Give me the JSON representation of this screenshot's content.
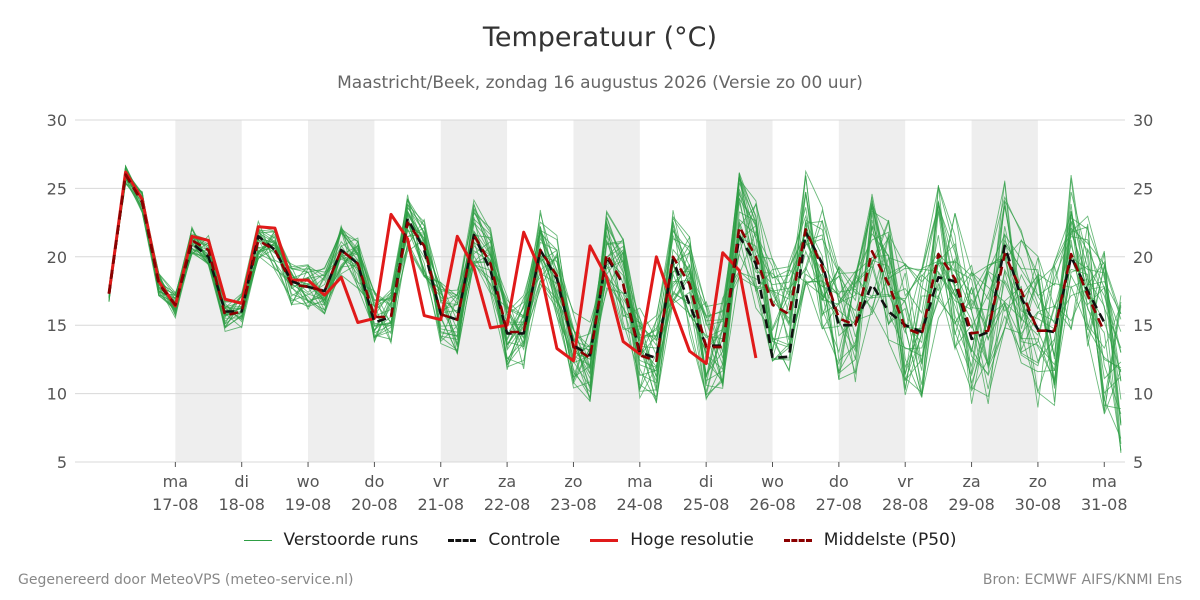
{
  "header": {
    "title": "Temperatuur (°C)",
    "subtitle": "Maastricht/Beek, zondag 16 augustus 2026 (Versie zo 00 uur)"
  },
  "legend": {
    "ensemble": "Verstoorde runs",
    "control": "Controle",
    "hires": "Hoge resolutie",
    "median": "Middelste (P50)"
  },
  "footer": {
    "left": "Gegenereerd door MeteoVPS (meteo-service.nl)",
    "right": "Bron: ECMWF AIFS/KNMI Ens"
  },
  "colors": {
    "ensemble": "#2e9e44",
    "control": "#111111",
    "hires": "#e01a1a",
    "median": "#8b0000",
    "band": "#eeeeee",
    "grid": "#d8d8d8"
  },
  "chart_data": {
    "type": "line",
    "title": "Temperatuur (°C)",
    "subtitle": "Maastricht/Beek, zondag 16 augustus 2026 (Versie zo 00 uur)",
    "ylim": [
      5,
      30
    ],
    "yticks": [
      5,
      10,
      15,
      20,
      25,
      30
    ],
    "grid": true,
    "legend_position": "bottom",
    "x": [
      "16-08 00u",
      "16-08 06u",
      "16-08 12u",
      "16-08 18u",
      "17-08 00u",
      "17-08 06u",
      "17-08 12u",
      "17-08 18u",
      "18-08 00u",
      "18-08 06u",
      "18-08 12u",
      "18-08 18u",
      "19-08 00u",
      "19-08 06u",
      "19-08 12u",
      "19-08 18u",
      "20-08 00u",
      "20-08 06u",
      "20-08 12u",
      "20-08 18u",
      "21-08 00u",
      "21-08 06u",
      "21-08 12u",
      "21-08 18u",
      "22-08 00u",
      "22-08 06u",
      "22-08 12u",
      "22-08 18u",
      "23-08 00u",
      "23-08 06u",
      "23-08 12u",
      "23-08 18u",
      "24-08 00u",
      "24-08 06u",
      "24-08 12u",
      "24-08 18u",
      "25-08 00u",
      "25-08 06u",
      "25-08 12u",
      "25-08 18u",
      "26-08 00u",
      "26-08 06u",
      "26-08 12u",
      "26-08 18u",
      "27-08 00u",
      "27-08 06u",
      "27-08 12u",
      "27-08 18u",
      "28-08 00u",
      "28-08 06u",
      "28-08 12u",
      "28-08 18u",
      "29-08 00u",
      "29-08 06u",
      "29-08 12u",
      "29-08 18u",
      "30-08 00u",
      "30-08 06u",
      "30-08 12u",
      "30-08 18u",
      "31-08 00u",
      "31-08 06u"
    ],
    "x_tick_labels": [
      {
        "day": "ma",
        "date": "17-08"
      },
      {
        "day": "di",
        "date": "18-08"
      },
      {
        "day": "wo",
        "date": "19-08"
      },
      {
        "day": "do",
        "date": "20-08"
      },
      {
        "day": "vr",
        "date": "21-08"
      },
      {
        "day": "za",
        "date": "22-08"
      },
      {
        "day": "zo",
        "date": "23-08"
      },
      {
        "day": "ma",
        "date": "24-08"
      },
      {
        "day": "di",
        "date": "25-08"
      },
      {
        "day": "wo",
        "date": "26-08"
      },
      {
        "day": "do",
        "date": "27-08"
      },
      {
        "day": "vr",
        "date": "28-08"
      },
      {
        "day": "za",
        "date": "29-08"
      },
      {
        "day": "zo",
        "date": "30-08"
      },
      {
        "day": "ma",
        "date": "31-08"
      }
    ],
    "shaded_days": [
      "17-08",
      "19-08",
      "21-08",
      "23-08",
      "25-08",
      "27-08",
      "29-08"
    ],
    "series": [
      {
        "name": "Hoge resolutie",
        "role": "hires",
        "values": [
          17.3,
          26.2,
          24.2,
          18.2,
          16.4,
          21.5,
          21.2,
          16.9,
          16.6,
          22.2,
          22.1,
          18.3,
          18.3,
          17.2,
          18.5,
          15.2,
          15.5,
          23.1,
          21.3,
          15.7,
          15.4,
          21.5,
          19.2,
          14.8,
          15.0,
          21.8,
          19.0,
          13.3,
          12.4,
          20.8,
          18.5,
          13.8,
          12.9,
          20.0,
          16.4,
          13.1,
          12.2,
          20.3,
          19.0,
          12.6,
          null,
          null,
          null,
          null,
          null,
          null,
          null,
          null,
          null,
          null,
          null,
          null,
          null,
          null,
          null,
          null,
          null,
          null,
          null,
          null,
          null,
          null
        ]
      },
      {
        "name": "Controle",
        "role": "control",
        "values": [
          17.3,
          26.0,
          24.0,
          18.0,
          16.5,
          21.0,
          20.0,
          16.0,
          16.0,
          21.5,
          20.5,
          18.2,
          17.8,
          17.5,
          20.5,
          19.5,
          15.2,
          15.6,
          22.8,
          20.5,
          15.8,
          15.4,
          21.6,
          19.0,
          14.4,
          14.4,
          20.5,
          18.4,
          13.5,
          12.8,
          20.0,
          18.0,
          13.0,
          12.6,
          19.8,
          16.5,
          13.5,
          13.5,
          21.5,
          19.5,
          12.6,
          12.7,
          21.8,
          19.5,
          15.0,
          15.0,
          18.0,
          16.0,
          15.0,
          14.5,
          18.5,
          18.2,
          14.0,
          14.5,
          20.8,
          17.0,
          14.7,
          14.5,
          20.0,
          17.5,
          15.2,
          null
        ]
      },
      {
        "name": "Middelste (P50)",
        "role": "median",
        "values": [
          17.3,
          26.0,
          24.0,
          18.0,
          16.5,
          21.2,
          20.5,
          15.7,
          16.0,
          21.2,
          20.5,
          18.0,
          17.8,
          17.5,
          20.5,
          19.5,
          15.6,
          15.6,
          22.5,
          20.8,
          15.8,
          15.4,
          21.6,
          19.5,
          14.5,
          14.5,
          20.5,
          18.6,
          13.4,
          12.6,
          20.2,
          18.0,
          12.8,
          12.4,
          20.0,
          18.0,
          13.4,
          13.4,
          22.2,
          20.0,
          16.5,
          15.8,
          22.0,
          19.2,
          15.5,
          15.0,
          20.4,
          18.0,
          14.8,
          14.3,
          20.2,
          18.4,
          14.4,
          14.6,
          20.2,
          17.5,
          14.6,
          14.6,
          20.2,
          17.2,
          14.5,
          null
        ]
      }
    ]
  }
}
